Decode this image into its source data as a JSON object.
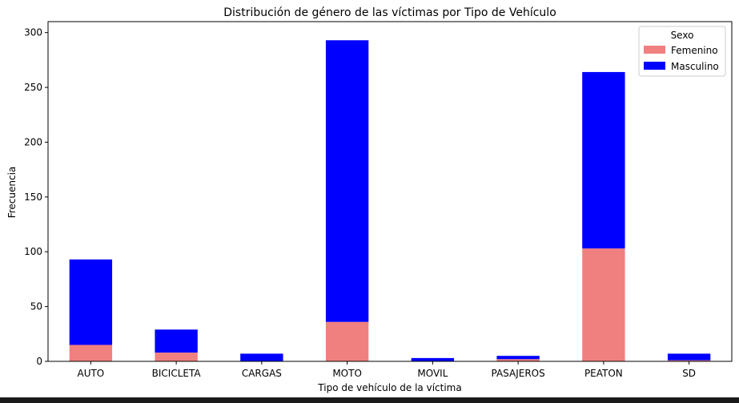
{
  "chart_data": {
    "type": "bar",
    "stacked": true,
    "title": "Distribución de género de las víctimas por Tipo de Vehículo",
    "xlabel": "Tipo de vehículo de la víctima",
    "ylabel": "Frecuencia",
    "ylim": [
      0,
      310
    ],
    "yticks": [
      0,
      50,
      100,
      150,
      200,
      250,
      300
    ],
    "categories": [
      "AUTO",
      "BICICLETA",
      "CARGAS",
      "MOTO",
      "MOVIL",
      "PASAJEROS",
      "PEATON",
      "SD"
    ],
    "series": [
      {
        "name": "Femenino",
        "color": "#f08080",
        "values": [
          15,
          8,
          0,
          36,
          0,
          2,
          103,
          1
        ]
      },
      {
        "name": "Masculino",
        "color": "#0000ff",
        "values": [
          78,
          21,
          7,
          257,
          3,
          3,
          161,
          6
        ]
      }
    ],
    "legend": {
      "title": "Sexo",
      "position": "top-right"
    },
    "grid": false
  }
}
